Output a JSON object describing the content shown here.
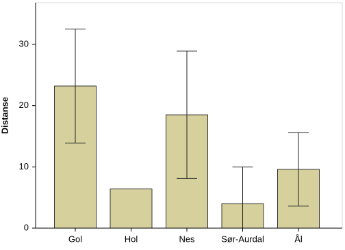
{
  "chart_data": {
    "type": "bar",
    "y_label": "Distanse",
    "categories": [
      "Gol",
      "Hol",
      "Nes",
      "Sør-Aurdal",
      "Ål"
    ],
    "values": [
      23.2,
      6.4,
      18.5,
      4.0,
      9.6
    ],
    "errors": [
      9.3,
      null,
      10.4,
      6.0,
      6.0
    ],
    "color": "#d5d09c",
    "ylim": [
      0,
      36.8
    ],
    "yticks": [
      0,
      10,
      20,
      30
    ],
    "grid": false
  }
}
